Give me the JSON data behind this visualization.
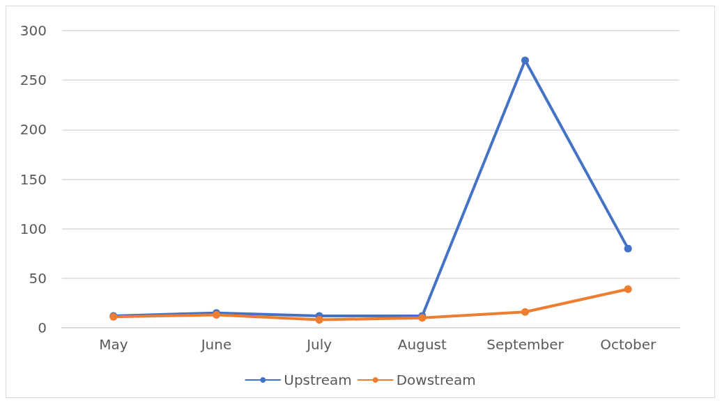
{
  "chart_data": {
    "type": "line",
    "categories": [
      "May",
      "June",
      "July",
      "August",
      "September",
      "October"
    ],
    "series": [
      {
        "name": "Upstream",
        "color": "#4472c4",
        "values": [
          12,
          15,
          12,
          12,
          270,
          80
        ]
      },
      {
        "name": "Dowstream",
        "color": "#ed7d31",
        "values": [
          11,
          13,
          8,
          10,
          16,
          39
        ]
      }
    ],
    "ylim": [
      0,
      300
    ],
    "yticks": [
      0,
      50,
      100,
      150,
      200,
      250,
      300
    ],
    "grid": "y",
    "legend": "bottom",
    "marker": "circle",
    "line_style": "solid"
  }
}
